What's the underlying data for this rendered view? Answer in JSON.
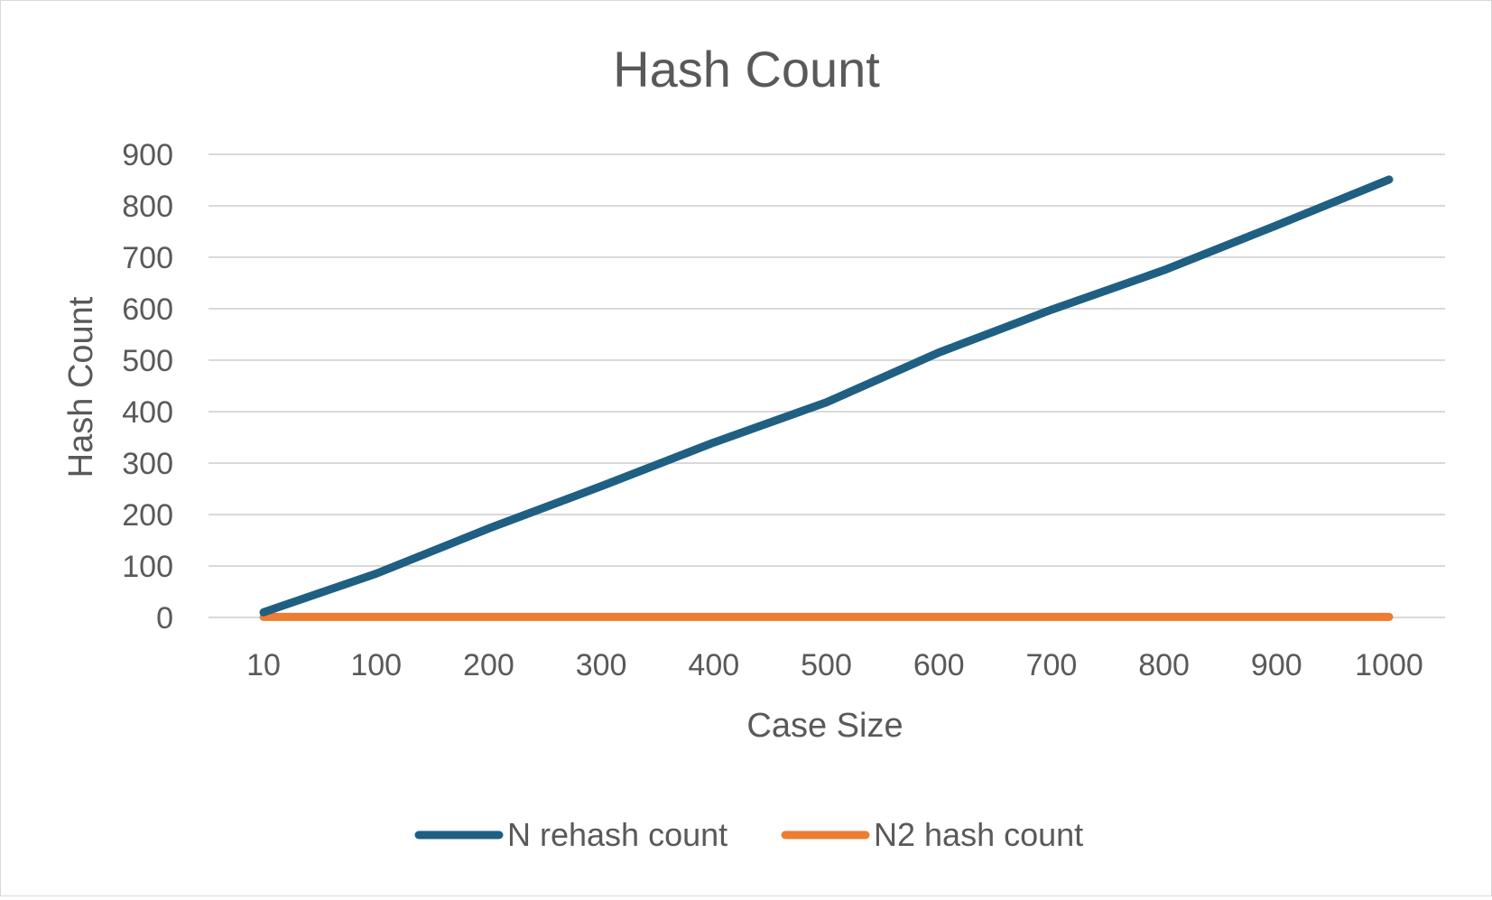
{
  "chart_data": {
    "type": "line",
    "title": "Hash Count",
    "xlabel": "Case Size",
    "ylabel": "Hash Count",
    "categories": [
      "10",
      "100",
      "200",
      "300",
      "400",
      "500",
      "600",
      "700",
      "800",
      "900",
      "1000"
    ],
    "series": [
      {
        "name": "N rehash count",
        "color": "#1f5f82",
        "values": [
          10,
          85,
          173,
          255,
          340,
          418,
          515,
          598,
          675,
          762,
          851
        ]
      },
      {
        "name": "N2 hash count",
        "color": "#ed7d31",
        "values": [
          1,
          1,
          1,
          1,
          1,
          1,
          1,
          1,
          1,
          1,
          1
        ]
      }
    ],
    "ylim": [
      0,
      900
    ],
    "yticks": [
      "0",
      "100",
      "200",
      "300",
      "400",
      "500",
      "600",
      "700",
      "800",
      "900"
    ],
    "grid": "horizontal",
    "legend": "bottom"
  }
}
